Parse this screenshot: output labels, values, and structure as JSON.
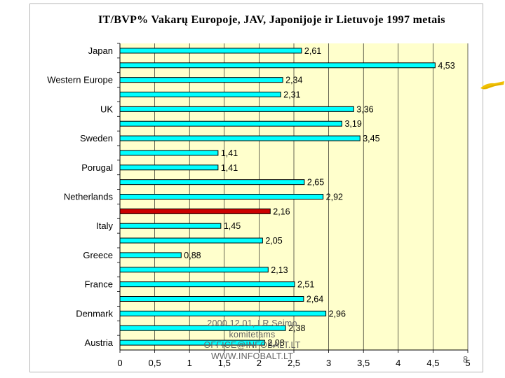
{
  "slide": {
    "title": "IT/BVP% Vakarų Europoje, JAV, Japonijoje ir Lietuvoje 1997 metais",
    "footer_lines": [
      "2000 12 01, LR Seimo",
      "komitetams",
      "OFFICE@INFOBALT.LT",
      "WWW.INFOBALT.LT"
    ],
    "page_number": "8",
    "colors": {
      "bar": "#00ffff",
      "highlight": "#cc0000",
      "plot_bg": "#ffffcc",
      "deco": "#f0c000"
    }
  },
  "chart_data": {
    "type": "bar",
    "orientation": "horizontal",
    "title": "IT/BVP% Vakarų Europoje, JAV, Japonijoje ir Lietuvoje 1997 metais",
    "xlim": [
      0,
      5
    ],
    "xticks": [
      "0",
      "0,5",
      "1",
      "1,5",
      "2",
      "2,5",
      "3",
      "3,5",
      "4",
      "4,5",
      "5"
    ],
    "grid": "vertical",
    "bars": [
      {
        "label": "Japan",
        "value": 2.61,
        "value_label": "2,61"
      },
      {
        "label": "",
        "value": 4.53,
        "value_label": "4,53"
      },
      {
        "label": "Western Europe",
        "value": 2.34,
        "value_label": "2,34"
      },
      {
        "label": "",
        "value": 2.31,
        "value_label": "2,31"
      },
      {
        "label": "UK",
        "value": 3.36,
        "value_label": "3,36"
      },
      {
        "label": "",
        "value": 3.19,
        "value_label": "3,19"
      },
      {
        "label": "Sweden",
        "value": 3.45,
        "value_label": "3,45"
      },
      {
        "label": "",
        "value": 1.41,
        "value_label": "1,41"
      },
      {
        "label": "Porugal",
        "value": 1.41,
        "value_label": "1,41"
      },
      {
        "label": "",
        "value": 2.65,
        "value_label": "2,65"
      },
      {
        "label": "Netherlands",
        "value": 2.92,
        "value_label": "2,92"
      },
      {
        "label": "",
        "value": 2.16,
        "value_label": "2,16",
        "highlight": true
      },
      {
        "label": "Italy",
        "value": 1.45,
        "value_label": "1,45"
      },
      {
        "label": "",
        "value": 2.05,
        "value_label": "2,05"
      },
      {
        "label": "Greece",
        "value": 0.88,
        "value_label": "0,88"
      },
      {
        "label": "",
        "value": 2.13,
        "value_label": "2,13"
      },
      {
        "label": "France",
        "value": 2.51,
        "value_label": "2,51"
      },
      {
        "label": "",
        "value": 2.64,
        "value_label": "2,64"
      },
      {
        "label": "Denmark",
        "value": 2.96,
        "value_label": "2,96"
      },
      {
        "label": "",
        "value": 2.38,
        "value_label": "2,38"
      },
      {
        "label": "Austria",
        "value": 2.08,
        "value_label": "2,08"
      }
    ]
  }
}
